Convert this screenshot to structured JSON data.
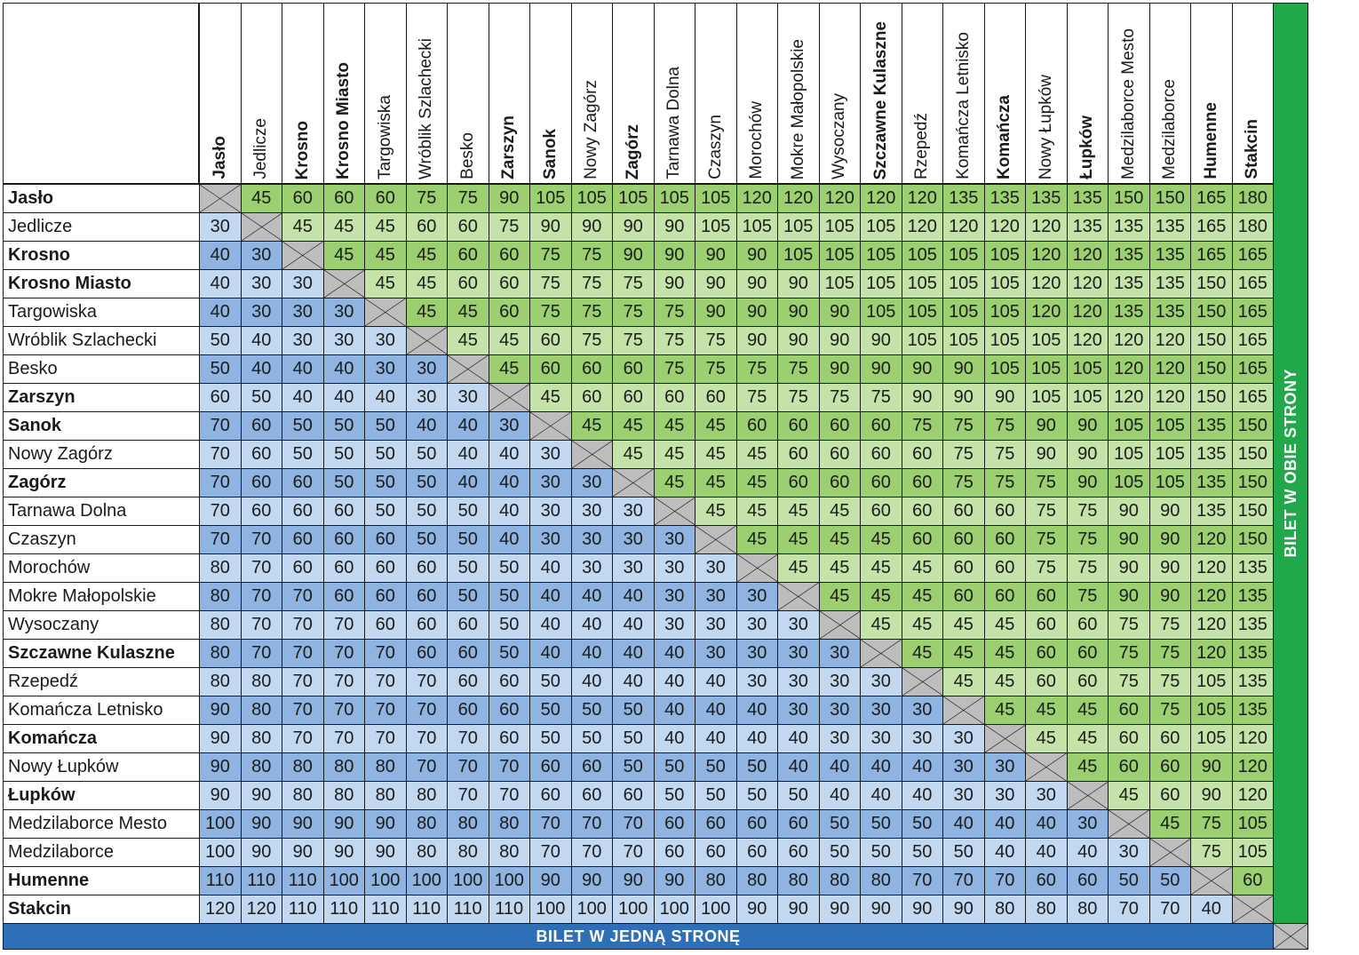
{
  "stations": [
    {
      "name": "Jasło",
      "bold": true
    },
    {
      "name": "Jedlicze",
      "bold": false
    },
    {
      "name": "Krosno",
      "bold": true
    },
    {
      "name": "Krosno Miasto",
      "bold": true
    },
    {
      "name": "Targowiska",
      "bold": false
    },
    {
      "name": "Wróblik Szlachecki",
      "bold": false
    },
    {
      "name": "Besko",
      "bold": false
    },
    {
      "name": "Zarszyn",
      "bold": true
    },
    {
      "name": "Sanok",
      "bold": true
    },
    {
      "name": "Nowy Zagórz",
      "bold": false
    },
    {
      "name": "Zagórz",
      "bold": true
    },
    {
      "name": "Tarnawa Dolna",
      "bold": false
    },
    {
      "name": "Czaszyn",
      "bold": false
    },
    {
      "name": "Morochów",
      "bold": false
    },
    {
      "name": "Mokre Małopolskie",
      "bold": false
    },
    {
      "name": "Wysoczany",
      "bold": false
    },
    {
      "name": "Szczawne Kulaszne",
      "bold": true
    },
    {
      "name": "Rzepedź",
      "bold": false
    },
    {
      "name": "Komańcza Letnisko",
      "bold": false
    },
    {
      "name": "Komańcza",
      "bold": true
    },
    {
      "name": "Nowy Łupków",
      "bold": false
    },
    {
      "name": "Łupków",
      "bold": true
    },
    {
      "name": "Medzilaborce Mesto",
      "bold": false
    },
    {
      "name": "Medzilaborce",
      "bold": false
    },
    {
      "name": "Humenne",
      "bold": true
    },
    {
      "name": "Stakcin",
      "bold": true
    }
  ],
  "matrix": [
    [
      null,
      45,
      60,
      60,
      60,
      75,
      75,
      90,
      105,
      105,
      105,
      105,
      105,
      120,
      120,
      120,
      120,
      120,
      135,
      135,
      135,
      135,
      150,
      150,
      165,
      180
    ],
    [
      30,
      null,
      45,
      45,
      45,
      60,
      60,
      75,
      90,
      90,
      90,
      90,
      105,
      105,
      105,
      105,
      105,
      120,
      120,
      120,
      120,
      135,
      135,
      135,
      165,
      180
    ],
    [
      40,
      30,
      null,
      45,
      45,
      45,
      60,
      60,
      75,
      75,
      90,
      90,
      90,
      90,
      105,
      105,
      105,
      105,
      105,
      105,
      120,
      120,
      135,
      135,
      165,
      165
    ],
    [
      40,
      30,
      30,
      null,
      45,
      45,
      60,
      60,
      75,
      75,
      75,
      90,
      90,
      90,
      90,
      105,
      105,
      105,
      105,
      105,
      120,
      120,
      135,
      135,
      150,
      165
    ],
    [
      40,
      30,
      30,
      30,
      null,
      45,
      45,
      60,
      75,
      75,
      75,
      75,
      90,
      90,
      90,
      90,
      105,
      105,
      105,
      105,
      120,
      120,
      135,
      135,
      150,
      165
    ],
    [
      50,
      40,
      30,
      30,
      30,
      null,
      45,
      45,
      60,
      75,
      75,
      75,
      75,
      90,
      90,
      90,
      90,
      105,
      105,
      105,
      105,
      120,
      120,
      120,
      150,
      165
    ],
    [
      50,
      40,
      40,
      40,
      30,
      30,
      null,
      45,
      60,
      60,
      60,
      75,
      75,
      75,
      75,
      90,
      90,
      90,
      90,
      105,
      105,
      105,
      120,
      120,
      150,
      165
    ],
    [
      60,
      50,
      40,
      40,
      40,
      30,
      30,
      null,
      45,
      60,
      60,
      60,
      60,
      75,
      75,
      75,
      75,
      90,
      90,
      90,
      105,
      105,
      120,
      120,
      150,
      165
    ],
    [
      70,
      60,
      50,
      50,
      50,
      40,
      40,
      30,
      null,
      45,
      45,
      45,
      45,
      60,
      60,
      60,
      60,
      75,
      75,
      75,
      90,
      90,
      105,
      105,
      135,
      150
    ],
    [
      70,
      60,
      50,
      50,
      50,
      50,
      40,
      40,
      30,
      null,
      45,
      45,
      45,
      45,
      60,
      60,
      60,
      60,
      75,
      75,
      90,
      90,
      105,
      105,
      135,
      150
    ],
    [
      70,
      60,
      60,
      50,
      50,
      50,
      40,
      40,
      30,
      30,
      null,
      45,
      45,
      45,
      60,
      60,
      60,
      60,
      75,
      75,
      75,
      90,
      105,
      105,
      135,
      150
    ],
    [
      70,
      60,
      60,
      60,
      50,
      50,
      50,
      40,
      30,
      30,
      30,
      null,
      45,
      45,
      45,
      45,
      60,
      60,
      60,
      60,
      75,
      75,
      90,
      90,
      135,
      150
    ],
    [
      70,
      70,
      60,
      60,
      60,
      50,
      50,
      40,
      30,
      30,
      30,
      30,
      null,
      45,
      45,
      45,
      45,
      60,
      60,
      60,
      75,
      75,
      90,
      90,
      120,
      150
    ],
    [
      80,
      70,
      60,
      60,
      60,
      60,
      50,
      50,
      40,
      30,
      30,
      30,
      30,
      null,
      45,
      45,
      45,
      45,
      60,
      60,
      75,
      75,
      90,
      90,
      120,
      135
    ],
    [
      80,
      70,
      70,
      60,
      60,
      60,
      50,
      50,
      40,
      40,
      40,
      30,
      30,
      30,
      null,
      45,
      45,
      45,
      60,
      60,
      60,
      75,
      90,
      90,
      120,
      135
    ],
    [
      80,
      70,
      70,
      70,
      60,
      60,
      60,
      50,
      40,
      40,
      40,
      30,
      30,
      30,
      30,
      null,
      45,
      45,
      45,
      45,
      60,
      60,
      75,
      75,
      120,
      135
    ],
    [
      80,
      70,
      70,
      70,
      70,
      60,
      60,
      50,
      40,
      40,
      40,
      40,
      30,
      30,
      30,
      30,
      null,
      45,
      45,
      45,
      60,
      60,
      75,
      75,
      120,
      135
    ],
    [
      80,
      80,
      70,
      70,
      70,
      70,
      60,
      60,
      50,
      40,
      40,
      40,
      40,
      30,
      30,
      30,
      30,
      null,
      45,
      45,
      60,
      60,
      75,
      75,
      105,
      135
    ],
    [
      90,
      80,
      70,
      70,
      70,
      70,
      60,
      60,
      50,
      50,
      50,
      40,
      40,
      40,
      30,
      30,
      30,
      30,
      null,
      45,
      45,
      45,
      60,
      75,
      105,
      135
    ],
    [
      90,
      80,
      70,
      70,
      70,
      70,
      70,
      60,
      50,
      50,
      50,
      40,
      40,
      40,
      40,
      30,
      30,
      30,
      30,
      null,
      45,
      45,
      60,
      60,
      105,
      120
    ],
    [
      90,
      80,
      80,
      80,
      80,
      70,
      70,
      70,
      60,
      60,
      50,
      50,
      50,
      50,
      40,
      40,
      40,
      40,
      30,
      30,
      null,
      45,
      60,
      60,
      90,
      120
    ],
    [
      90,
      90,
      80,
      80,
      80,
      80,
      70,
      70,
      60,
      60,
      60,
      50,
      50,
      50,
      50,
      40,
      40,
      40,
      30,
      30,
      30,
      null,
      45,
      60,
      90,
      120
    ],
    [
      100,
      90,
      90,
      90,
      90,
      80,
      80,
      80,
      70,
      70,
      70,
      60,
      60,
      60,
      60,
      50,
      50,
      50,
      40,
      40,
      40,
      30,
      null,
      45,
      75,
      105
    ],
    [
      100,
      90,
      90,
      90,
      90,
      80,
      80,
      80,
      70,
      70,
      70,
      60,
      60,
      60,
      60,
      50,
      50,
      50,
      50,
      40,
      40,
      40,
      30,
      null,
      75,
      105
    ],
    [
      110,
      110,
      110,
      100,
      100,
      100,
      100,
      100,
      90,
      90,
      90,
      90,
      80,
      80,
      80,
      80,
      80,
      70,
      70,
      70,
      60,
      60,
      50,
      50,
      null,
      60
    ],
    [
      120,
      120,
      110,
      110,
      110,
      110,
      110,
      110,
      100,
      100,
      100,
      100,
      100,
      90,
      90,
      90,
      90,
      90,
      90,
      80,
      80,
      80,
      70,
      70,
      40,
      null
    ]
  ],
  "labels": {
    "one_way": "BILET W JEDNĄ STRONĘ",
    "both_ways": "BILET W OBIE STRONY"
  },
  "colors": {
    "green_dark": "#9bcf6f",
    "green_light": "#c5e3a8",
    "blue_dark": "#8fb4e1",
    "blue_light": "#c2d8f0",
    "diagonal": "#bdbdbd",
    "bar_blue": "#2e6fb8",
    "bar_green": "#21a84b"
  }
}
